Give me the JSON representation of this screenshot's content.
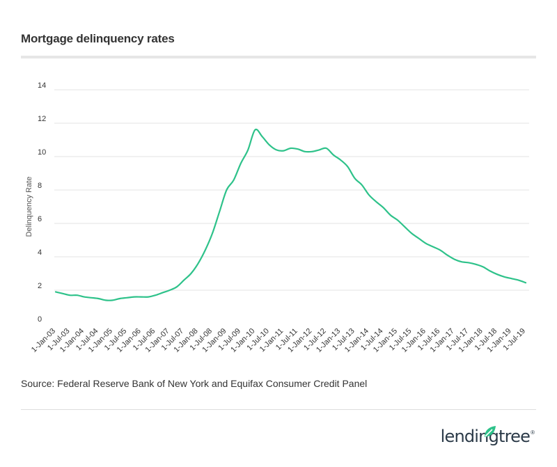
{
  "header": {
    "title": "Mortgage delinquency rates"
  },
  "footer": {
    "source": "Source: Federal Reserve Bank of New York and Equifax Consumer Credit Panel",
    "brand": "lendingtree",
    "brand_mark": "®"
  },
  "colors": {
    "line": "#2ec28a",
    "grid": "#e3e3e3",
    "brand_leaf": "#2ec28a",
    "brand_text": "#2b3a48"
  },
  "chart_data": {
    "type": "line",
    "title": "Mortgage delinquency rates",
    "xlabel": "",
    "ylabel": "Delinquency Rate",
    "ylim": [
      0,
      14
    ],
    "yticks": [
      0,
      2,
      4,
      6,
      8,
      10,
      12,
      14
    ],
    "grid": true,
    "legend": "none",
    "x_tick_labels": [
      "1-Jan-03",
      "1-Jul-03",
      "1-Jan-04",
      "1-Jul-04",
      "1-Jan-05",
      "1-Jul-05",
      "1-Jan-06",
      "1-Jul-06",
      "1-Jan-07",
      "1-Jul-07",
      "1-Jan-08",
      "1-Jul-08",
      "1-Jan-09",
      "1-Jul-09",
      "1-Jan-10",
      "1-Jul-10",
      "1-Jan-11",
      "1-Jul-11",
      "1-Jan-12",
      "1-Jul-12",
      "1-Jan-13",
      "1-Jul-13",
      "1-Jan-14",
      "1-Jul-14",
      "1-Jan-15",
      "1-Jul-15",
      "1-Jan-16",
      "1-Jul-16",
      "1-Jan-17",
      "1-Jul-17",
      "1-Jan-18",
      "1-Jul-18",
      "1-Jan-19",
      "1-Jul-19"
    ],
    "series": [
      {
        "x": [
          "2003-01",
          "2003-04",
          "2003-07",
          "2003-10",
          "2004-01",
          "2004-04",
          "2004-07",
          "2004-10",
          "2005-01",
          "2005-04",
          "2005-07",
          "2005-10",
          "2006-01",
          "2006-04",
          "2006-07",
          "2006-10",
          "2007-01",
          "2007-04",
          "2007-07",
          "2007-10",
          "2008-01",
          "2008-04",
          "2008-07",
          "2008-10",
          "2009-01",
          "2009-04",
          "2009-07",
          "2009-10",
          "2010-01",
          "2010-04",
          "2010-07",
          "2010-10",
          "2011-01",
          "2011-04",
          "2011-07",
          "2011-10",
          "2012-01",
          "2012-04",
          "2012-07",
          "2012-10",
          "2013-01",
          "2013-04",
          "2013-07",
          "2013-10",
          "2014-01",
          "2014-04",
          "2014-07",
          "2014-10",
          "2015-01",
          "2015-04",
          "2015-07",
          "2015-10",
          "2016-01",
          "2016-04",
          "2016-07",
          "2016-10",
          "2017-01",
          "2017-04",
          "2017-07",
          "2017-10",
          "2018-01",
          "2018-04",
          "2018-07",
          "2018-10",
          "2019-01",
          "2019-04",
          "2019-07"
        ],
        "values": [
          1.9,
          1.8,
          1.7,
          1.7,
          1.6,
          1.55,
          1.5,
          1.4,
          1.4,
          1.5,
          1.55,
          1.6,
          1.6,
          1.6,
          1.7,
          1.85,
          2.0,
          2.2,
          2.6,
          3.0,
          3.6,
          4.4,
          5.4,
          6.7,
          8.0,
          8.6,
          9.6,
          10.4,
          11.6,
          11.2,
          10.7,
          10.4,
          10.35,
          10.5,
          10.45,
          10.3,
          10.3,
          10.4,
          10.5,
          10.1,
          9.8,
          9.4,
          8.7,
          8.3,
          7.7,
          7.3,
          6.95,
          6.5,
          6.2,
          5.8,
          5.4,
          5.1,
          4.8,
          4.6,
          4.4,
          4.1,
          3.85,
          3.7,
          3.65,
          3.55,
          3.4,
          3.15,
          2.95,
          2.8,
          2.7,
          2.6,
          2.45
        ]
      }
    ]
  }
}
